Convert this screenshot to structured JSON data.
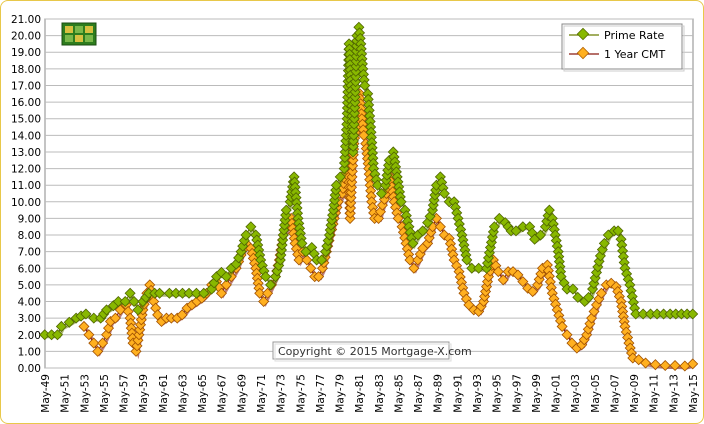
{
  "chart_data": {
    "type": "line",
    "title": "",
    "xlabel": "",
    "ylabel": "",
    "ylim": [
      0,
      21
    ],
    "y_ticks": [
      "0.00",
      "1.00",
      "2.00",
      "3.00",
      "4.00",
      "5.00",
      "6.00",
      "7.00",
      "8.00",
      "9.00",
      "10.00",
      "11.00",
      "12.00",
      "13.00",
      "14.00",
      "15.00",
      "16.00",
      "17.00",
      "18.00",
      "19.00",
      "20.00",
      "21.00"
    ],
    "x_ticks": [
      "May-49",
      "May-51",
      "May-53",
      "May-55",
      "May-57",
      "May-59",
      "May-61",
      "May-63",
      "May-65",
      "May-67",
      "May-69",
      "May-71",
      "May-73",
      "May-75",
      "May-77",
      "May-79",
      "May-81",
      "May-83",
      "May-85",
      "May-87",
      "May-89",
      "May-91",
      "May-93",
      "May-95",
      "May-97",
      "May-99",
      "May-01",
      "May-03",
      "May-05",
      "May-07",
      "May-09",
      "May-11",
      "May-13",
      "May-15"
    ],
    "x_range": [
      1949.33,
      2015.33
    ],
    "grid": true,
    "legend_position": "top-right",
    "copyright": "Copyright © 2015 Mortgage-X.com",
    "series": [
      {
        "name": "Prime Rate",
        "color": "#88b800",
        "line_color": "#6a7d00",
        "x": [
          1949.3,
          1950.0,
          1950.6,
          1951.0,
          1951.8,
          1952.5,
          1953.5,
          1954.3,
          1955.0,
          1955.6,
          1956.3,
          1956.8,
          1957.5,
          1958.0,
          1958.4,
          1958.8,
          1959.3,
          1959.9,
          1960.5,
          1961.0,
          1962.0,
          1964.0,
          1965.5,
          1966.3,
          1966.8,
          1967.3,
          1967.8,
          1968.3,
          1968.8,
          1969.3,
          1969.8,
          1970.3,
          1970.8,
          1971.3,
          1971.8,
          1972.3,
          1972.8,
          1973.3,
          1973.6,
          1973.9,
          1974.3,
          1974.7,
          1975.1,
          1975.5,
          1975.9,
          1976.5,
          1977.0,
          1977.5,
          1977.9,
          1978.3,
          1978.7,
          1979.0,
          1979.4,
          1979.8,
          1980.1,
          1980.3,
          1980.5,
          1980.7,
          1980.9,
          1981.1,
          1981.3,
          1981.5,
          1981.7,
          1981.9,
          1982.2,
          1982.5,
          1982.8,
          1983.2,
          1983.6,
          1984.0,
          1984.4,
          1984.8,
          1985.2,
          1985.6,
          1986.0,
          1986.4,
          1986.8,
          1987.3,
          1987.8,
          1988.3,
          1988.8,
          1989.2,
          1989.6,
          1990.0,
          1990.5,
          1991.0,
          1991.4,
          1991.8,
          1992.3,
          1992.8,
          1993.5,
          1994.3,
          1994.7,
          1995.1,
          1995.6,
          1996.2,
          1996.8,
          1997.3,
          1998.0,
          1998.7,
          1999.2,
          1999.8,
          2000.3,
          2000.7,
          2001.0,
          2001.3,
          2001.6,
          2001.9,
          2002.5,
          2003.1,
          2003.6,
          2004.3,
          2004.7,
          2005.1,
          2005.5,
          2005.9,
          2006.3,
          2006.7,
          2007.3,
          2007.7,
          2008.0,
          2008.4,
          2008.9,
          2009.5,
          2011.0,
          2013.0,
          2015.3
        ],
        "y": [
          2.0,
          2.0,
          2.0,
          2.5,
          2.75,
          3.0,
          3.25,
          3.0,
          3.0,
          3.5,
          3.75,
          4.0,
          4.0,
          4.5,
          4.0,
          3.5,
          4.0,
          4.5,
          4.5,
          4.5,
          4.5,
          4.5,
          4.5,
          4.75,
          5.5,
          5.75,
          5.5,
          6.0,
          6.25,
          7.0,
          8.0,
          8.5,
          8.0,
          6.5,
          5.5,
          5.0,
          5.5,
          6.5,
          8.0,
          9.5,
          10.0,
          11.5,
          9.0,
          7.5,
          7.0,
          7.25,
          6.5,
          6.5,
          7.0,
          8.0,
          9.5,
          11.0,
          11.5,
          12.0,
          15.0,
          19.5,
          17.0,
          13.0,
          16.0,
          20.0,
          20.5,
          19.5,
          18.0,
          17.0,
          16.5,
          14.5,
          12.0,
          11.0,
          10.5,
          11.0,
          12.5,
          13.0,
          11.5,
          10.0,
          9.5,
          8.5,
          7.5,
          8.0,
          8.25,
          8.75,
          9.5,
          11.0,
          11.5,
          10.5,
          10.0,
          10.0,
          9.0,
          8.0,
          6.5,
          6.0,
          6.0,
          6.0,
          7.25,
          8.5,
          9.0,
          8.75,
          8.25,
          8.25,
          8.5,
          8.5,
          7.75,
          8.0,
          8.5,
          9.5,
          9.0,
          8.0,
          7.0,
          5.5,
          4.75,
          4.75,
          4.25,
          4.0,
          4.25,
          4.75,
          5.75,
          6.75,
          7.5,
          8.0,
          8.25,
          8.25,
          7.75,
          6.0,
          5.0,
          3.25,
          3.25,
          3.25,
          3.25
        ]
      },
      {
        "name": "1 Year CMT",
        "color": "#ffb020",
        "line_color": "#8b1a10",
        "x": [
          1953.3,
          1953.8,
          1954.3,
          1954.7,
          1955.2,
          1955.6,
          1956.0,
          1956.5,
          1957.0,
          1957.6,
          1958.0,
          1958.3,
          1958.6,
          1958.9,
          1959.3,
          1959.7,
          1960.0,
          1960.4,
          1960.8,
          1961.2,
          1961.7,
          1962.2,
          1962.8,
          1963.3,
          1963.8,
          1964.3,
          1964.8,
          1965.3,
          1965.8,
          1966.3,
          1966.8,
          1967.3,
          1967.8,
          1968.3,
          1968.8,
          1969.3,
          1969.8,
          1970.3,
          1970.8,
          1971.2,
          1971.6,
          1972.0,
          1972.4,
          1972.8,
          1973.2,
          1973.6,
          1974.0,
          1974.4,
          1974.8,
          1975.2,
          1975.6,
          1976.0,
          1976.4,
          1976.8,
          1977.2,
          1977.6,
          1978.0,
          1978.4,
          1978.8,
          1979.2,
          1979.6,
          1980.0,
          1980.2,
          1980.4,
          1980.6,
          1980.8,
          1981.0,
          1981.2,
          1981.4,
          1981.6,
          1981.8,
          1982.0,
          1982.3,
          1982.6,
          1982.9,
          1983.3,
          1983.7,
          1984.1,
          1984.5,
          1984.9,
          1985.3,
          1985.7,
          1986.1,
          1986.5,
          1986.9,
          1987.3,
          1987.8,
          1988.3,
          1988.8,
          1989.2,
          1989.6,
          1990.0,
          1990.5,
          1991.0,
          1991.5,
          1992.0,
          1992.5,
          1993.0,
          1993.5,
          1994.0,
          1994.5,
          1995.0,
          1995.5,
          1996.0,
          1996.5,
          1997.0,
          1997.5,
          1998.0,
          1998.5,
          1999.0,
          1999.5,
          2000.0,
          2000.5,
          2001.0,
          2001.5,
          2002.0,
          2002.5,
          2003.0,
          2003.5,
          2004.0,
          2004.5,
          2005.0,
          2005.5,
          2006.0,
          2006.5,
          2007.0,
          2007.5,
          2008.0,
          2008.4,
          2008.8,
          2009.2,
          2009.8,
          2010.5,
          2011.5,
          2012.5,
          2013.5,
          2014.5,
          2015.3
        ],
        "y": [
          2.5,
          2.0,
          1.5,
          1.0,
          1.5,
          2.0,
          2.8,
          3.0,
          3.5,
          3.8,
          3.0,
          1.5,
          1.0,
          2.0,
          3.5,
          4.5,
          5.0,
          4.0,
          3.2,
          2.8,
          3.0,
          3.0,
          3.0,
          3.2,
          3.6,
          3.8,
          4.0,
          4.2,
          4.5,
          5.0,
          5.2,
          4.5,
          5.0,
          5.5,
          6.0,
          6.8,
          7.5,
          7.2,
          6.0,
          4.5,
          4.0,
          4.5,
          5.0,
          5.5,
          6.5,
          8.0,
          8.5,
          9.0,
          7.5,
          6.5,
          7.0,
          6.5,
          6.0,
          5.5,
          5.5,
          6.0,
          7.0,
          8.0,
          9.0,
          10.0,
          10.5,
          12.0,
          14.0,
          9.0,
          11.5,
          13.5,
          14.5,
          15.5,
          16.5,
          15.0,
          14.0,
          13.5,
          12.0,
          10.0,
          9.0,
          9.0,
          9.8,
          10.5,
          11.5,
          10.0,
          9.0,
          8.5,
          7.5,
          6.5,
          6.0,
          6.5,
          7.2,
          7.5,
          8.5,
          9.0,
          8.5,
          8.0,
          7.8,
          6.5,
          5.8,
          4.5,
          3.8,
          3.5,
          3.4,
          4.0,
          5.5,
          6.5,
          5.8,
          5.3,
          5.8,
          5.8,
          5.6,
          5.2,
          4.8,
          4.6,
          5.0,
          6.0,
          6.2,
          4.5,
          3.5,
          2.5,
          2.0,
          1.5,
          1.2,
          1.4,
          2.0,
          3.0,
          3.8,
          4.5,
          5.0,
          5.1,
          4.9,
          4.0,
          2.5,
          1.5,
          0.6,
          0.5,
          0.3,
          0.2,
          0.15,
          0.15,
          0.12,
          0.25
        ]
      }
    ]
  },
  "legend": {
    "prime_label": "Prime Rate",
    "cmt_label": "1 Year CMT"
  },
  "logo": {
    "icon": "mortgage-x-logo-icon",
    "color": "#2e7d1e"
  }
}
